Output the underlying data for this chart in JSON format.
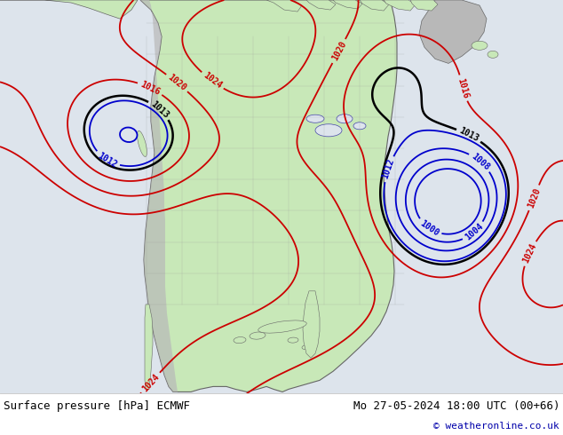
{
  "title_left": "Surface pressure [hPa] ECMWF",
  "title_right": "Mo 27-05-2024 18:00 UTC (00+66)",
  "copyright": "© weatheronline.co.uk",
  "ocean_color": "#dde4ec",
  "land_color": "#c8e8b8",
  "mountain_color": "#b8b8b8",
  "border_color": "#666666",
  "figsize": [
    6.34,
    4.9
  ],
  "dpi": 100,
  "footer_bg": "#ffffff",
  "blue": "#0000cc",
  "red": "#cc0000",
  "black": "#000000"
}
